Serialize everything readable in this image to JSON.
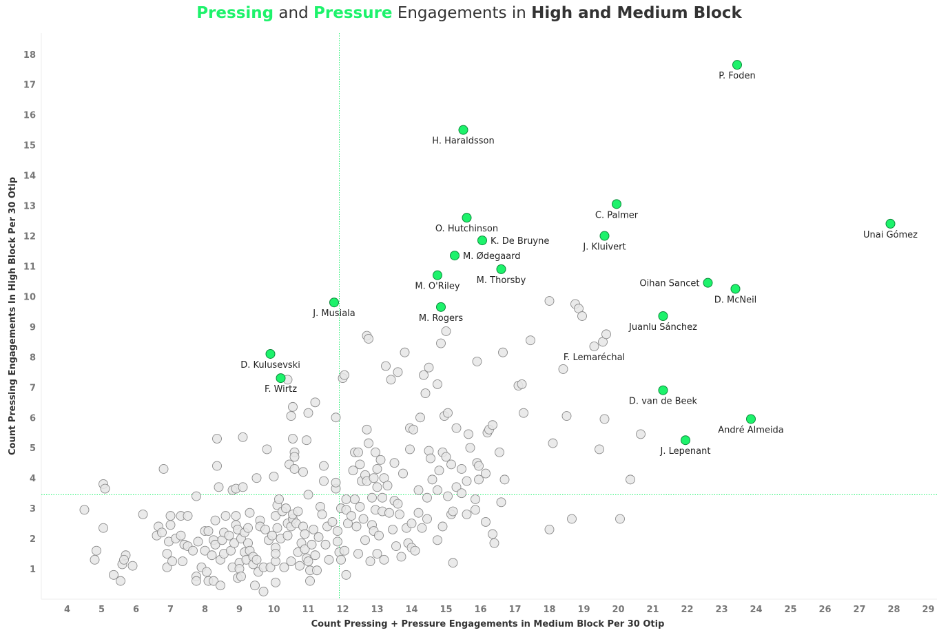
{
  "title": {
    "part1": "Pressing",
    "part2": " and ",
    "part3": "Pressure",
    "part4": " Engagements in ",
    "part5": "High and Medium Block"
  },
  "colors": {
    "highlight": "#1df26b",
    "highlight_stroke": "#0a8a3a",
    "other": "#e6e6e6",
    "other_stroke": "#8a8a8a",
    "reference_line": "#1df26b"
  },
  "chart_data": {
    "type": "scatter",
    "xlabel": "Count Pressing + Pressure Engagements in Medium Block Per 30 Otip",
    "ylabel": "Count Pressing Engagements In High Block Per 30 Otip",
    "xlim": [
      3.25,
      29.25
    ],
    "ylim": [
      0,
      18.7
    ],
    "xticks": [
      4,
      5,
      6,
      7,
      8,
      9,
      10,
      11,
      12,
      13,
      14,
      15,
      16,
      17,
      18,
      19,
      20,
      21,
      22,
      23,
      24,
      25,
      26,
      27,
      28,
      29
    ],
    "yticks": [
      1,
      2,
      3,
      4,
      5,
      6,
      7,
      8,
      9,
      10,
      11,
      12,
      13,
      14,
      15,
      16,
      17,
      18
    ],
    "grid": false,
    "reference_lines": {
      "x": 11.9,
      "y": 3.45
    },
    "highlighted": [
      {
        "name": "P. Foden",
        "x": 23.45,
        "y": 17.65
      },
      {
        "name": "H. Haraldsson",
        "x": 15.5,
        "y": 15.5
      },
      {
        "name": "C. Palmer",
        "x": 19.95,
        "y": 13.05
      },
      {
        "name": "Unai Gómez",
        "x": 27.9,
        "y": 12.4
      },
      {
        "name": "O. Hutchinson",
        "x": 15.6,
        "y": 12.6
      },
      {
        "name": "J. Kluivert",
        "x": 19.6,
        "y": 12.0
      },
      {
        "name": "K. De Bruyne",
        "x": 16.05,
        "y": 11.85
      },
      {
        "name": "M. Ødegaard",
        "x": 15.25,
        "y": 11.35
      },
      {
        "name": "M. Thorsby",
        "x": 16.6,
        "y": 10.9
      },
      {
        "name": "M. O'Riley",
        "x": 14.75,
        "y": 10.7
      },
      {
        "name": "Oihan Sancet",
        "x": 22.6,
        "y": 10.45
      },
      {
        "name": "D. McNeil",
        "x": 23.4,
        "y": 10.25
      },
      {
        "name": "J. Musiala",
        "x": 11.75,
        "y": 9.8
      },
      {
        "name": "M. Rogers",
        "x": 14.85,
        "y": 9.65
      },
      {
        "name": "Juanlu Sánchez",
        "x": 21.3,
        "y": 9.35
      },
      {
        "name": "D. Kulusevski",
        "x": 9.9,
        "y": 8.1
      },
      {
        "name": "F. Wirtz",
        "x": 10.2,
        "y": 7.3
      },
      {
        "name": "D. van de Beek",
        "x": 21.3,
        "y": 6.9
      },
      {
        "name": "André Almeida",
        "x": 23.85,
        "y": 5.95
      },
      {
        "name": "J. Lepenant",
        "x": 21.95,
        "y": 5.25
      }
    ],
    "others": [
      {
        "x": 4.5,
        "y": 2.95
      },
      {
        "x": 4.8,
        "y": 1.3
      },
      {
        "x": 4.85,
        "y": 1.6
      },
      {
        "x": 5.05,
        "y": 3.8
      },
      {
        "x": 5.1,
        "y": 3.65
      },
      {
        "x": 5.05,
        "y": 2.35
      },
      {
        "x": 5.35,
        "y": 0.8
      },
      {
        "x": 5.55,
        "y": 0.6
      },
      {
        "x": 5.6,
        "y": 1.15
      },
      {
        "x": 5.7,
        "y": 1.45
      },
      {
        "x": 5.65,
        "y": 1.3
      },
      {
        "x": 5.9,
        "y": 1.1
      },
      {
        "x": 6.2,
        "y": 2.8
      },
      {
        "x": 6.6,
        "y": 2.1
      },
      {
        "x": 6.65,
        "y": 2.4
      },
      {
        "x": 6.75,
        "y": 2.2
      },
      {
        "x": 6.8,
        "y": 4.3
      },
      {
        "x": 6.9,
        "y": 1.5
      },
      {
        "x": 6.9,
        "y": 1.05
      },
      {
        "x": 6.95,
        "y": 1.9
      },
      {
        "x": 7.0,
        "y": 2.45
      },
      {
        "x": 7.0,
        "y": 2.75
      },
      {
        "x": 7.05,
        "y": 1.25
      },
      {
        "x": 7.15,
        "y": 2.0
      },
      {
        "x": 7.3,
        "y": 2.75
      },
      {
        "x": 7.3,
        "y": 2.1
      },
      {
        "x": 7.35,
        "y": 1.25
      },
      {
        "x": 7.4,
        "y": 1.8
      },
      {
        "x": 7.5,
        "y": 1.75
      },
      {
        "x": 7.5,
        "y": 2.75
      },
      {
        "x": 7.65,
        "y": 1.6
      },
      {
        "x": 7.75,
        "y": 3.4
      },
      {
        "x": 7.75,
        "y": 0.75
      },
      {
        "x": 7.8,
        "y": 1.9
      },
      {
        "x": 7.75,
        "y": 0.6
      },
      {
        "x": 7.9,
        "y": 1.05
      },
      {
        "x": 8.0,
        "y": 1.6
      },
      {
        "x": 8.0,
        "y": 2.25
      },
      {
        "x": 8.05,
        "y": 0.9
      },
      {
        "x": 8.1,
        "y": 0.6
      },
      {
        "x": 8.1,
        "y": 2.25
      },
      {
        "x": 8.2,
        "y": 1.45
      },
      {
        "x": 8.25,
        "y": 1.95
      },
      {
        "x": 8.25,
        "y": 0.6
      },
      {
        "x": 8.3,
        "y": 1.8
      },
      {
        "x": 8.3,
        "y": 2.6
      },
      {
        "x": 8.35,
        "y": 5.3
      },
      {
        "x": 8.35,
        "y": 4.4
      },
      {
        "x": 8.4,
        "y": 3.7
      },
      {
        "x": 8.45,
        "y": 1.3
      },
      {
        "x": 8.45,
        "y": 0.45
      },
      {
        "x": 8.5,
        "y": 1.95
      },
      {
        "x": 8.55,
        "y": 2.2
      },
      {
        "x": 8.55,
        "y": 1.5
      },
      {
        "x": 8.6,
        "y": 2.75
      },
      {
        "x": 8.7,
        "y": 2.1
      },
      {
        "x": 8.75,
        "y": 1.6
      },
      {
        "x": 8.8,
        "y": 3.6
      },
      {
        "x": 8.8,
        "y": 1.05
      },
      {
        "x": 8.85,
        "y": 1.85
      },
      {
        "x": 8.9,
        "y": 2.45
      },
      {
        "x": 8.9,
        "y": 3.65
      },
      {
        "x": 8.9,
        "y": 2.75
      },
      {
        "x": 8.95,
        "y": 0.7
      },
      {
        "x": 8.95,
        "y": 2.3
      },
      {
        "x": 9.0,
        "y": 1.2
      },
      {
        "x": 9.0,
        "y": 1.0
      },
      {
        "x": 9.05,
        "y": 2.0
      },
      {
        "x": 9.05,
        "y": 0.75
      },
      {
        "x": 9.1,
        "y": 5.35
      },
      {
        "x": 9.1,
        "y": 3.7
      },
      {
        "x": 9.15,
        "y": 1.55
      },
      {
        "x": 9.15,
        "y": 2.2
      },
      {
        "x": 9.2,
        "y": 1.3
      },
      {
        "x": 9.25,
        "y": 1.85
      },
      {
        "x": 9.25,
        "y": 2.35
      },
      {
        "x": 9.3,
        "y": 1.6
      },
      {
        "x": 9.3,
        "y": 2.85
      },
      {
        "x": 9.4,
        "y": 1.15
      },
      {
        "x": 9.4,
        "y": 1.4
      },
      {
        "x": 9.45,
        "y": 0.45
      },
      {
        "x": 9.5,
        "y": 1.3
      },
      {
        "x": 9.5,
        "y": 4.0
      },
      {
        "x": 9.55,
        "y": 0.9
      },
      {
        "x": 9.6,
        "y": 2.6
      },
      {
        "x": 9.6,
        "y": 2.4
      },
      {
        "x": 9.7,
        "y": 0.25
      },
      {
        "x": 9.7,
        "y": 1.05
      },
      {
        "x": 9.75,
        "y": 2.3
      },
      {
        "x": 9.8,
        "y": 4.95
      },
      {
        "x": 9.85,
        "y": 1.95
      },
      {
        "x": 9.9,
        "y": 1.05
      },
      {
        "x": 9.95,
        "y": 2.1
      },
      {
        "x": 10.0,
        "y": 4.05
      },
      {
        "x": 10.05,
        "y": 2.75
      },
      {
        "x": 10.05,
        "y": 1.25
      },
      {
        "x": 10.05,
        "y": 1.7
      },
      {
        "x": 10.05,
        "y": 1.5
      },
      {
        "x": 10.05,
        "y": 0.55
      },
      {
        "x": 10.1,
        "y": 2.35
      },
      {
        "x": 10.1,
        "y": 3.1
      },
      {
        "x": 10.15,
        "y": 3.3
      },
      {
        "x": 10.2,
        "y": 2.0
      },
      {
        "x": 10.25,
        "y": 2.9
      },
      {
        "x": 10.3,
        "y": 1.05
      },
      {
        "x": 10.35,
        "y": 3.0
      },
      {
        "x": 10.4,
        "y": 2.1
      },
      {
        "x": 10.4,
        "y": 7.25
      },
      {
        "x": 10.4,
        "y": 2.5
      },
      {
        "x": 10.45,
        "y": 4.45
      },
      {
        "x": 10.5,
        "y": 6.05
      },
      {
        "x": 10.5,
        "y": 1.25
      },
      {
        "x": 10.5,
        "y": 2.4
      },
      {
        "x": 10.55,
        "y": 2.65
      },
      {
        "x": 10.55,
        "y": 5.3
      },
      {
        "x": 10.55,
        "y": 6.35
      },
      {
        "x": 10.55,
        "y": 2.8
      },
      {
        "x": 10.6,
        "y": 4.85
      },
      {
        "x": 10.6,
        "y": 4.7
      },
      {
        "x": 10.6,
        "y": 4.3
      },
      {
        "x": 10.65,
        "y": 2.5
      },
      {
        "x": 10.7,
        "y": 1.55
      },
      {
        "x": 10.7,
        "y": 2.9
      },
      {
        "x": 10.75,
        "y": 1.1
      },
      {
        "x": 10.8,
        "y": 1.85
      },
      {
        "x": 10.85,
        "y": 2.4
      },
      {
        "x": 10.85,
        "y": 4.2
      },
      {
        "x": 10.9,
        "y": 2.15
      },
      {
        "x": 10.9,
        "y": 1.65
      },
      {
        "x": 10.95,
        "y": 1.35
      },
      {
        "x": 10.95,
        "y": 5.25
      },
      {
        "x": 11.0,
        "y": 6.15
      },
      {
        "x": 11.0,
        "y": 3.45
      },
      {
        "x": 11.0,
        "y": 1.25
      },
      {
        "x": 11.05,
        "y": 0.95
      },
      {
        "x": 11.05,
        "y": 0.6
      },
      {
        "x": 11.1,
        "y": 1.8
      },
      {
        "x": 11.15,
        "y": 2.3
      },
      {
        "x": 11.2,
        "y": 6.5
      },
      {
        "x": 11.2,
        "y": 1.45
      },
      {
        "x": 11.25,
        "y": 0.95
      },
      {
        "x": 11.3,
        "y": 2.05
      },
      {
        "x": 11.35,
        "y": 3.05
      },
      {
        "x": 11.4,
        "y": 2.8
      },
      {
        "x": 11.45,
        "y": 3.9
      },
      {
        "x": 11.45,
        "y": 4.4
      },
      {
        "x": 11.5,
        "y": 1.8
      },
      {
        "x": 11.55,
        "y": 2.4
      },
      {
        "x": 11.6,
        "y": 1.3
      },
      {
        "x": 11.7,
        "y": 2.55
      },
      {
        "x": 11.8,
        "y": 3.65
      },
      {
        "x": 11.8,
        "y": 6.0
      },
      {
        "x": 11.8,
        "y": 3.85
      },
      {
        "x": 11.85,
        "y": 2.25
      },
      {
        "x": 11.85,
        "y": 1.9
      },
      {
        "x": 11.9,
        "y": 1.55
      },
      {
        "x": 11.95,
        "y": 3.0
      },
      {
        "x": 11.95,
        "y": 1.3
      },
      {
        "x": 12.0,
        "y": 7.3
      },
      {
        "x": 12.05,
        "y": 1.6
      },
      {
        "x": 12.05,
        "y": 7.4
      },
      {
        "x": 12.1,
        "y": 3.3
      },
      {
        "x": 12.1,
        "y": 2.95
      },
      {
        "x": 12.1,
        "y": 0.8
      },
      {
        "x": 12.15,
        "y": 2.5
      },
      {
        "x": 12.25,
        "y": 2.75
      },
      {
        "x": 12.3,
        "y": 4.25
      },
      {
        "x": 12.35,
        "y": 4.85
      },
      {
        "x": 12.35,
        "y": 3.3
      },
      {
        "x": 12.4,
        "y": 2.4
      },
      {
        "x": 12.45,
        "y": 4.85
      },
      {
        "x": 12.45,
        "y": 1.5
      },
      {
        "x": 12.5,
        "y": 3.05
      },
      {
        "x": 12.5,
        "y": 4.45
      },
      {
        "x": 12.55,
        "y": 3.9
      },
      {
        "x": 12.6,
        "y": 2.65
      },
      {
        "x": 12.65,
        "y": 4.1
      },
      {
        "x": 12.65,
        "y": 1.95
      },
      {
        "x": 12.7,
        "y": 8.7
      },
      {
        "x": 12.7,
        "y": 3.9
      },
      {
        "x": 12.7,
        "y": 5.6
      },
      {
        "x": 12.75,
        "y": 8.6
      },
      {
        "x": 12.75,
        "y": 5.15
      },
      {
        "x": 12.8,
        "y": 1.25
      },
      {
        "x": 12.85,
        "y": 2.45
      },
      {
        "x": 12.85,
        "y": 3.35
      },
      {
        "x": 12.9,
        "y": 4.0
      },
      {
        "x": 12.9,
        "y": 2.25
      },
      {
        "x": 12.95,
        "y": 4.85
      },
      {
        "x": 12.95,
        "y": 2.95
      },
      {
        "x": 13.0,
        "y": 4.3
      },
      {
        "x": 13.0,
        "y": 3.7
      },
      {
        "x": 13.0,
        "y": 1.5
      },
      {
        "x": 13.05,
        "y": 2.1
      },
      {
        "x": 13.1,
        "y": 4.6
      },
      {
        "x": 13.15,
        "y": 3.35
      },
      {
        "x": 13.15,
        "y": 2.9
      },
      {
        "x": 13.2,
        "y": 4.0
      },
      {
        "x": 13.2,
        "y": 1.3
      },
      {
        "x": 13.25,
        "y": 7.7
      },
      {
        "x": 13.3,
        "y": 3.75
      },
      {
        "x": 13.35,
        "y": 2.85
      },
      {
        "x": 13.4,
        "y": 7.25
      },
      {
        "x": 13.45,
        "y": 2.3
      },
      {
        "x": 13.5,
        "y": 4.5
      },
      {
        "x": 13.5,
        "y": 3.25
      },
      {
        "x": 13.55,
        "y": 1.75
      },
      {
        "x": 13.6,
        "y": 7.5
      },
      {
        "x": 13.6,
        "y": 3.15
      },
      {
        "x": 13.65,
        "y": 2.8
      },
      {
        "x": 13.7,
        "y": 1.4
      },
      {
        "x": 13.75,
        "y": 4.15
      },
      {
        "x": 13.8,
        "y": 8.15
      },
      {
        "x": 13.85,
        "y": 2.35
      },
      {
        "x": 13.9,
        "y": 1.85
      },
      {
        "x": 13.95,
        "y": 5.65
      },
      {
        "x": 13.95,
        "y": 4.95
      },
      {
        "x": 14.0,
        "y": 2.5
      },
      {
        "x": 14.0,
        "y": 1.7
      },
      {
        "x": 14.05,
        "y": 5.6
      },
      {
        "x": 14.1,
        "y": 1.6
      },
      {
        "x": 14.2,
        "y": 3.6
      },
      {
        "x": 14.2,
        "y": 2.85
      },
      {
        "x": 14.25,
        "y": 6.0
      },
      {
        "x": 14.3,
        "y": 2.35
      },
      {
        "x": 14.35,
        "y": 7.4
      },
      {
        "x": 14.4,
        "y": 6.8
      },
      {
        "x": 14.45,
        "y": 3.35
      },
      {
        "x": 14.45,
        "y": 2.65
      },
      {
        "x": 14.5,
        "y": 7.65
      },
      {
        "x": 14.5,
        "y": 4.9
      },
      {
        "x": 14.55,
        "y": 4.65
      },
      {
        "x": 14.6,
        "y": 3.95
      },
      {
        "x": 14.75,
        "y": 7.1
      },
      {
        "x": 14.75,
        "y": 3.6
      },
      {
        "x": 14.75,
        "y": 1.95
      },
      {
        "x": 14.8,
        "y": 4.25
      },
      {
        "x": 14.85,
        "y": 8.45
      },
      {
        "x": 14.9,
        "y": 4.85
      },
      {
        "x": 14.9,
        "y": 2.4
      },
      {
        "x": 14.95,
        "y": 6.05
      },
      {
        "x": 15.0,
        "y": 8.85
      },
      {
        "x": 15.0,
        "y": 4.7
      },
      {
        "x": 15.05,
        "y": 3.4
      },
      {
        "x": 15.05,
        "y": 6.15
      },
      {
        "x": 15.15,
        "y": 4.45
      },
      {
        "x": 15.15,
        "y": 2.8
      },
      {
        "x": 15.2,
        "y": 2.9
      },
      {
        "x": 15.2,
        "y": 1.2
      },
      {
        "x": 15.3,
        "y": 5.65
      },
      {
        "x": 15.3,
        "y": 3.7
      },
      {
        "x": 15.45,
        "y": 4.3
      },
      {
        "x": 15.45,
        "y": 3.5
      },
      {
        "x": 15.6,
        "y": 3.9
      },
      {
        "x": 15.6,
        "y": 2.8
      },
      {
        "x": 15.65,
        "y": 5.45
      },
      {
        "x": 15.7,
        "y": 5.0
      },
      {
        "x": 15.85,
        "y": 2.95
      },
      {
        "x": 15.85,
        "y": 3.3
      },
      {
        "x": 15.9,
        "y": 7.85
      },
      {
        "x": 15.9,
        "y": 4.5
      },
      {
        "x": 15.95,
        "y": 3.95
      },
      {
        "x": 15.95,
        "y": 4.4
      },
      {
        "x": 16.15,
        "y": 2.55
      },
      {
        "x": 16.15,
        "y": 4.15
      },
      {
        "x": 16.2,
        "y": 5.5
      },
      {
        "x": 16.25,
        "y": 5.6
      },
      {
        "x": 16.35,
        "y": 5.75
      },
      {
        "x": 16.35,
        "y": 2.15
      },
      {
        "x": 16.4,
        "y": 1.85
      },
      {
        "x": 16.55,
        "y": 4.85
      },
      {
        "x": 16.6,
        "y": 3.2
      },
      {
        "x": 16.65,
        "y": 8.15
      },
      {
        "x": 16.7,
        "y": 3.95
      },
      {
        "x": 17.1,
        "y": 7.05
      },
      {
        "x": 17.2,
        "y": 7.1
      },
      {
        "x": 17.25,
        "y": 6.15
      },
      {
        "x": 17.45,
        "y": 8.55
      },
      {
        "x": 18.0,
        "y": 9.85
      },
      {
        "x": 18.0,
        "y": 2.3
      },
      {
        "x": 18.1,
        "y": 5.15
      },
      {
        "x": 18.4,
        "y": 7.6
      },
      {
        "x": 18.5,
        "y": 6.05
      },
      {
        "x": 18.65,
        "y": 2.65
      },
      {
        "x": 18.75,
        "y": 9.75
      },
      {
        "x": 18.85,
        "y": 9.6
      },
      {
        "x": 18.95,
        "y": 9.35
      },
      {
        "x": 19.3,
        "y": 8.35
      },
      {
        "x": 19.45,
        "y": 4.95
      },
      {
        "x": 19.55,
        "y": 8.5
      },
      {
        "x": 19.6,
        "y": 5.95
      },
      {
        "x": 19.65,
        "y": 8.75
      },
      {
        "x": 20.05,
        "y": 2.65
      },
      {
        "x": 20.35,
        "y": 3.95
      },
      {
        "x": 20.65,
        "y": 5.45
      }
    ],
    "unlabeled_annotation": "F. Lemaréchal",
    "annotation_point": {
      "x": 19.3,
      "y": 8.35
    }
  }
}
